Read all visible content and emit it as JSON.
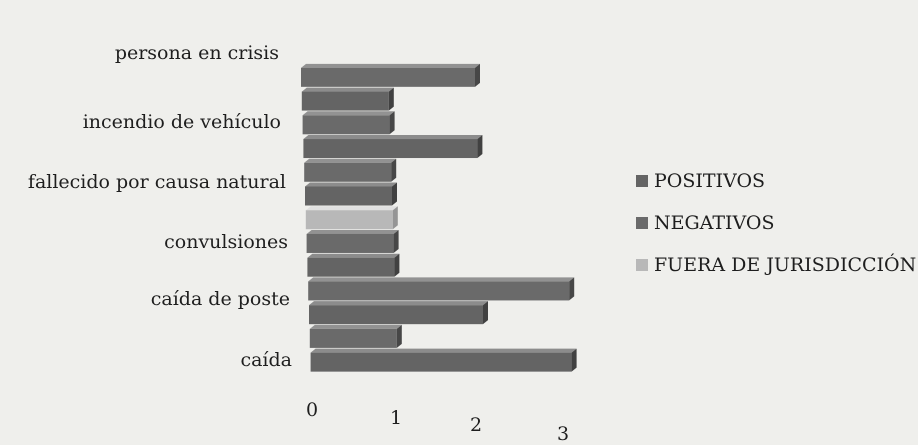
{
  "chart_data": {
    "type": "bar",
    "orientation": "horizontal",
    "style": "3d",
    "categories": [
      "caída",
      "caída de poste",
      "convulsiones",
      "fallecido por causa natural",
      "incendio de vehículo",
      "persona en crisis"
    ],
    "series": [
      {
        "name": "POSITIVOS",
        "values": [
          3,
          2,
          1,
          1,
          2,
          1
        ],
        "color": "#646464"
      },
      {
        "name": "NEGATIVOS",
        "values": [
          1,
          3,
          1,
          1,
          1,
          2
        ],
        "color": "#6a6a6a"
      },
      {
        "name": "FUERA DE JURISDICCIÓN",
        "values": [
          0,
          0,
          1,
          0,
          0,
          0
        ],
        "color": "#b8b8b8"
      }
    ],
    "x_ticks": [
      "0",
      "1",
      "2",
      "3"
    ],
    "xlim": [
      0,
      3
    ],
    "legend_position": "right",
    "grid": false
  }
}
